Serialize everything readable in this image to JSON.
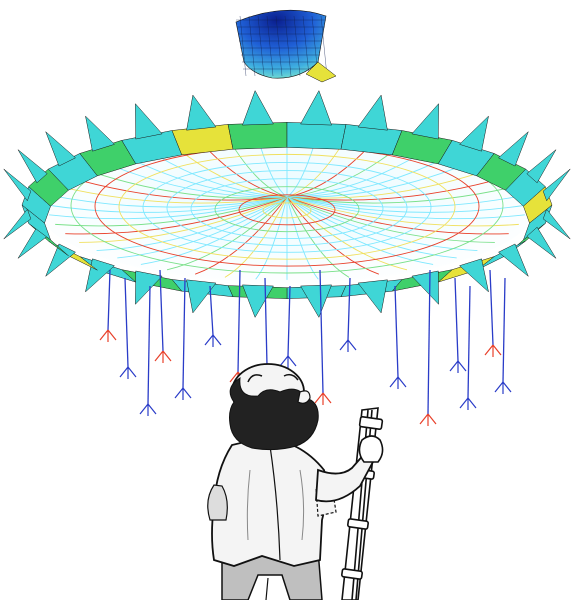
{
  "image": {
    "subject": "finite-element-mesh-roof-with-cartoon-figure",
    "colors": {
      "mesh_edge": "#1a1a1a",
      "cap_dark": "#0a1f8f",
      "cap_mid": "#1f5fd6",
      "cap_light": "#5fd0e0",
      "ring_cyan": "#3fd6d6",
      "ring_green": "#3fd06a",
      "ring_yellow": "#e6e23a",
      "ring_orange": "#f0a030",
      "net_cyan": "#7fe8ff",
      "net_yellow": "#f0e060",
      "net_red": "#e8402a",
      "net_green": "#7ae08a",
      "cable_blue": "#2a3cc8",
      "man_coat": "#f4f4f4",
      "man_hair": "#222222",
      "man_pants": "#bfbfbf"
    },
    "icons": [
      "fem-dome-mesh",
      "hanging-cable",
      "cartoon-scientist"
    ]
  }
}
